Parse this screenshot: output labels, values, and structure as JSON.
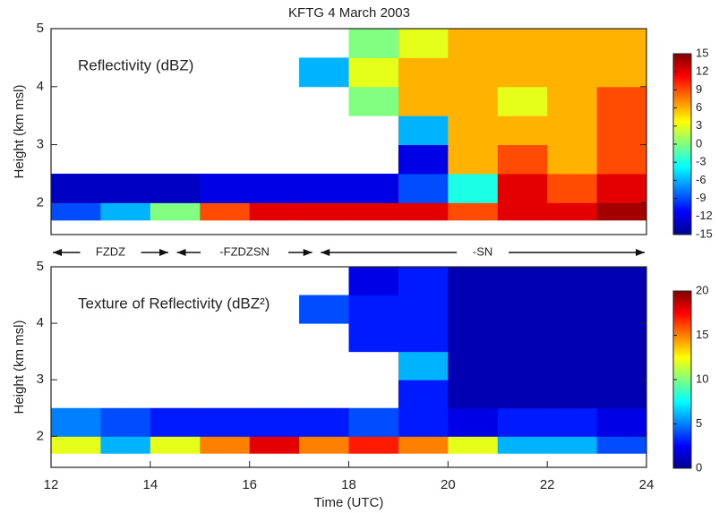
{
  "chart_data": [
    {
      "type": "heatmap",
      "title": "KFTG  4 March 2003",
      "label": "Reflectivity (dBZ)",
      "ylabel": "Height (km msl)",
      "xlim": [
        12,
        24
      ],
      "ylim": [
        1.45,
        5
      ],
      "yticks": [
        2,
        3,
        4,
        5
      ],
      "x_edges": [
        12,
        13,
        14,
        15,
        16,
        17,
        18,
        19,
        20,
        21,
        22,
        23,
        24
      ],
      "y_edges": [
        1.7,
        2.0,
        2.5,
        3,
        3.5,
        4,
        4.5,
        5
      ],
      "values": [
        [
          -9,
          -6,
          0,
          9,
          12,
          12,
          12,
          12,
          9,
          12,
          12,
          14
        ],
        [
          -13,
          -13,
          -13,
          -12,
          -12,
          -12,
          -12,
          -9,
          -3,
          12,
          9,
          12
        ],
        [
          null,
          null,
          null,
          null,
          null,
          null,
          null,
          -12,
          6,
          9,
          6,
          9
        ],
        [
          null,
          null,
          null,
          null,
          null,
          null,
          null,
          -6,
          6,
          6,
          6,
          9
        ],
        [
          null,
          null,
          null,
          null,
          null,
          null,
          0,
          6,
          6,
          3,
          6,
          9
        ],
        [
          null,
          null,
          null,
          null,
          null,
          -6,
          3,
          6,
          6,
          6,
          6,
          6
        ],
        [
          null,
          null,
          null,
          null,
          null,
          null,
          0,
          3,
          6,
          6,
          6,
          6
        ]
      ],
      "colormap": "jet",
      "clim": [
        -15,
        15
      ],
      "cticks": [
        -15,
        -12,
        -9,
        -6,
        -3,
        0,
        3,
        6,
        9,
        12,
        15
      ],
      "phases": [
        {
          "label": "FZDZ",
          "start": 12,
          "end": 14.4
        },
        {
          "label": "-FZDZSN",
          "start": 14.5,
          "end": 17.3
        },
        {
          "label": "-SN",
          "start": 17.4,
          "end": 24
        }
      ]
    },
    {
      "type": "heatmap",
      "label": "Texture of Reflectivity (dBZ²)",
      "ylabel": "Height (km msl)",
      "xlabel": "Time (UTC)",
      "xlim": [
        12,
        24
      ],
      "ylim": [
        1.45,
        5
      ],
      "yticks": [
        2,
        3,
        4,
        5
      ],
      "xticks": [
        12,
        14,
        16,
        18,
        20,
        22,
        24
      ],
      "x_edges": [
        12,
        13,
        14,
        15,
        16,
        17,
        18,
        19,
        20,
        21,
        22,
        23,
        24
      ],
      "y_edges": [
        1.7,
        2.0,
        2.5,
        3,
        3.5,
        4,
        4.5,
        5
      ],
      "values": [
        [
          12,
          6,
          12,
          15,
          18,
          15,
          17,
          15,
          12,
          6,
          6,
          4
        ],
        [
          5,
          4,
          3,
          3,
          3,
          3,
          4,
          3,
          2,
          3,
          3,
          2
        ],
        [
          null,
          null,
          null,
          null,
          null,
          null,
          null,
          3,
          1,
          1,
          1,
          1
        ],
        [
          null,
          null,
          null,
          null,
          null,
          null,
          null,
          6,
          1,
          1,
          1,
          1
        ],
        [
          null,
          null,
          null,
          null,
          null,
          null,
          3,
          3,
          1,
          1,
          1,
          1
        ],
        [
          null,
          null,
          null,
          null,
          null,
          4,
          3,
          3,
          1,
          1,
          1,
          1
        ],
        [
          null,
          null,
          null,
          null,
          null,
          null,
          2,
          3,
          1,
          1,
          1,
          1
        ]
      ],
      "colormap": "jet",
      "clim": [
        0,
        20
      ],
      "cticks": [
        0,
        5,
        10,
        15,
        20
      ]
    }
  ]
}
